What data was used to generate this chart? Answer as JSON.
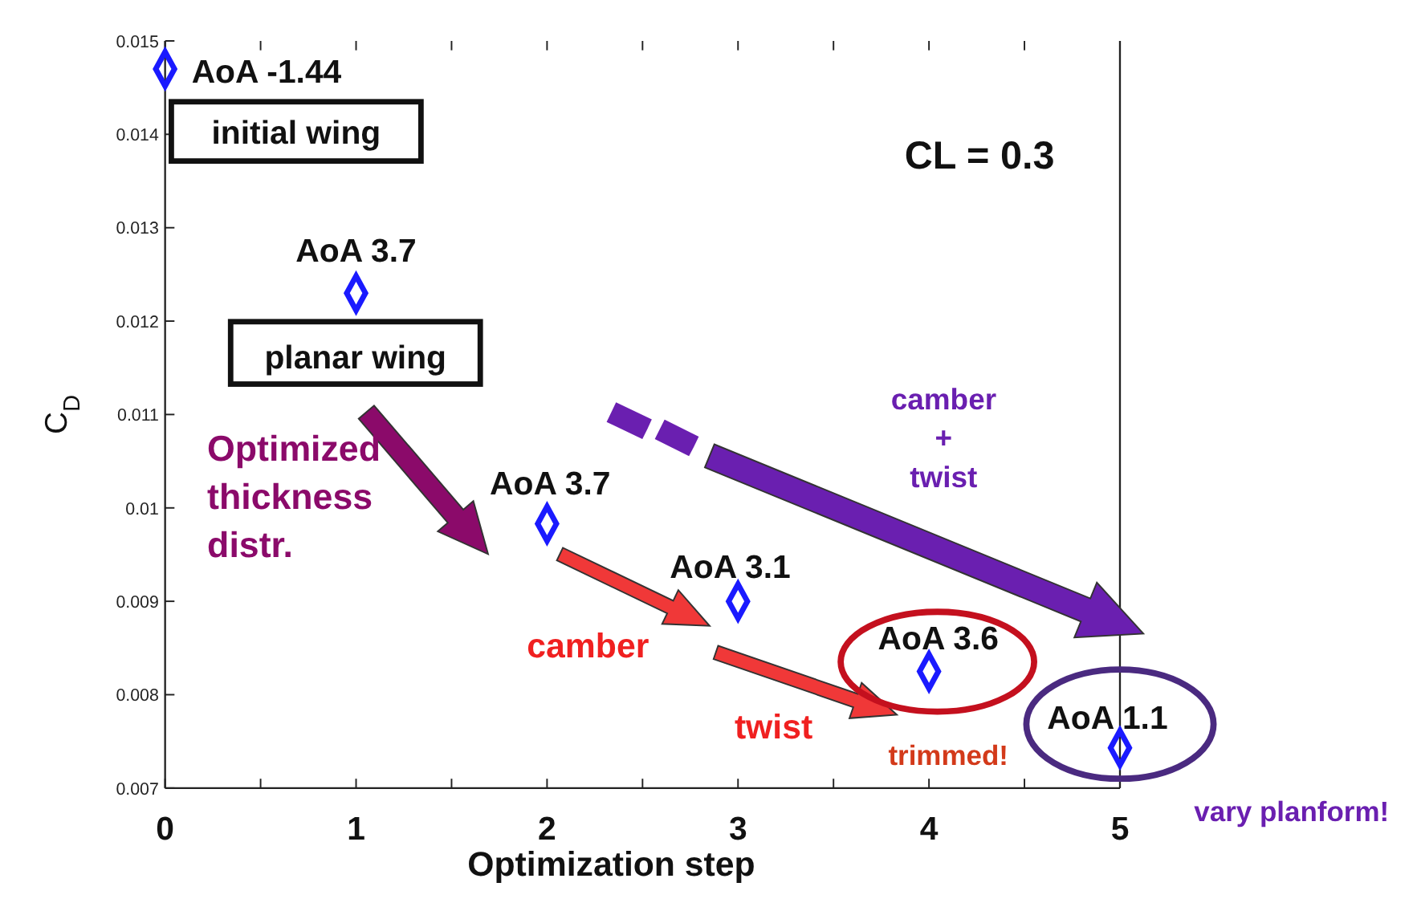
{
  "chart_data": {
    "type": "scatter",
    "xlabel": "Optimization step",
    "ylabel": "C$_{D}$",
    "x": [
      0,
      1,
      2,
      3,
      4,
      5
    ],
    "series": [
      {
        "color": "#1a1aff",
        "values": [
          0.0147,
          0.0123,
          0.00983,
          0.009,
          0.00825,
          0.00743
        ]
      }
    ],
    "marker": "diamond",
    "grid": false,
    "xlim": [
      0,
      5
    ],
    "xticks": [
      0,
      {
        "value": 0.5,
        "label": null
      },
      1,
      {
        "value": 1.5,
        "label": null
      },
      2,
      {
        "value": 2.5,
        "label": null
      },
      3,
      {
        "value": 3.5,
        "label": null
      },
      4,
      {
        "value": 4.5,
        "label": null
      },
      5
    ],
    "ylim": [
      0.007,
      0.015
    ],
    "yticks": [
      0.007,
      0.008,
      0.009,
      0.01,
      0.011,
      0.012,
      0.013,
      0.014,
      0.015
    ],
    "annotations": [
      {
        "text": "AoA -1.44",
        "x": 0,
        "y": 0.0147
      },
      "initial wing",
      {
        "text": "AoA 3.7",
        "x": 1,
        "y": 0.0123
      },
      "planar wing",
      {
        "text": "AoA 3.7",
        "x": 2,
        "y": 0.00983
      },
      {
        "text": "AoA 3.1",
        "x": 3,
        "y": 0.009
      },
      {
        "text": "AoA 3.6",
        "x": 4,
        "y": 0.00825
      },
      {
        "text": "AoA 1.1",
        "x": 5,
        "y": 0.00743
      },
      "CL = 0.3",
      "Optimized thickness distr.",
      "camber",
      "twist",
      "trimmed!",
      "camber + twist",
      "vary planform!"
    ]
  }
}
